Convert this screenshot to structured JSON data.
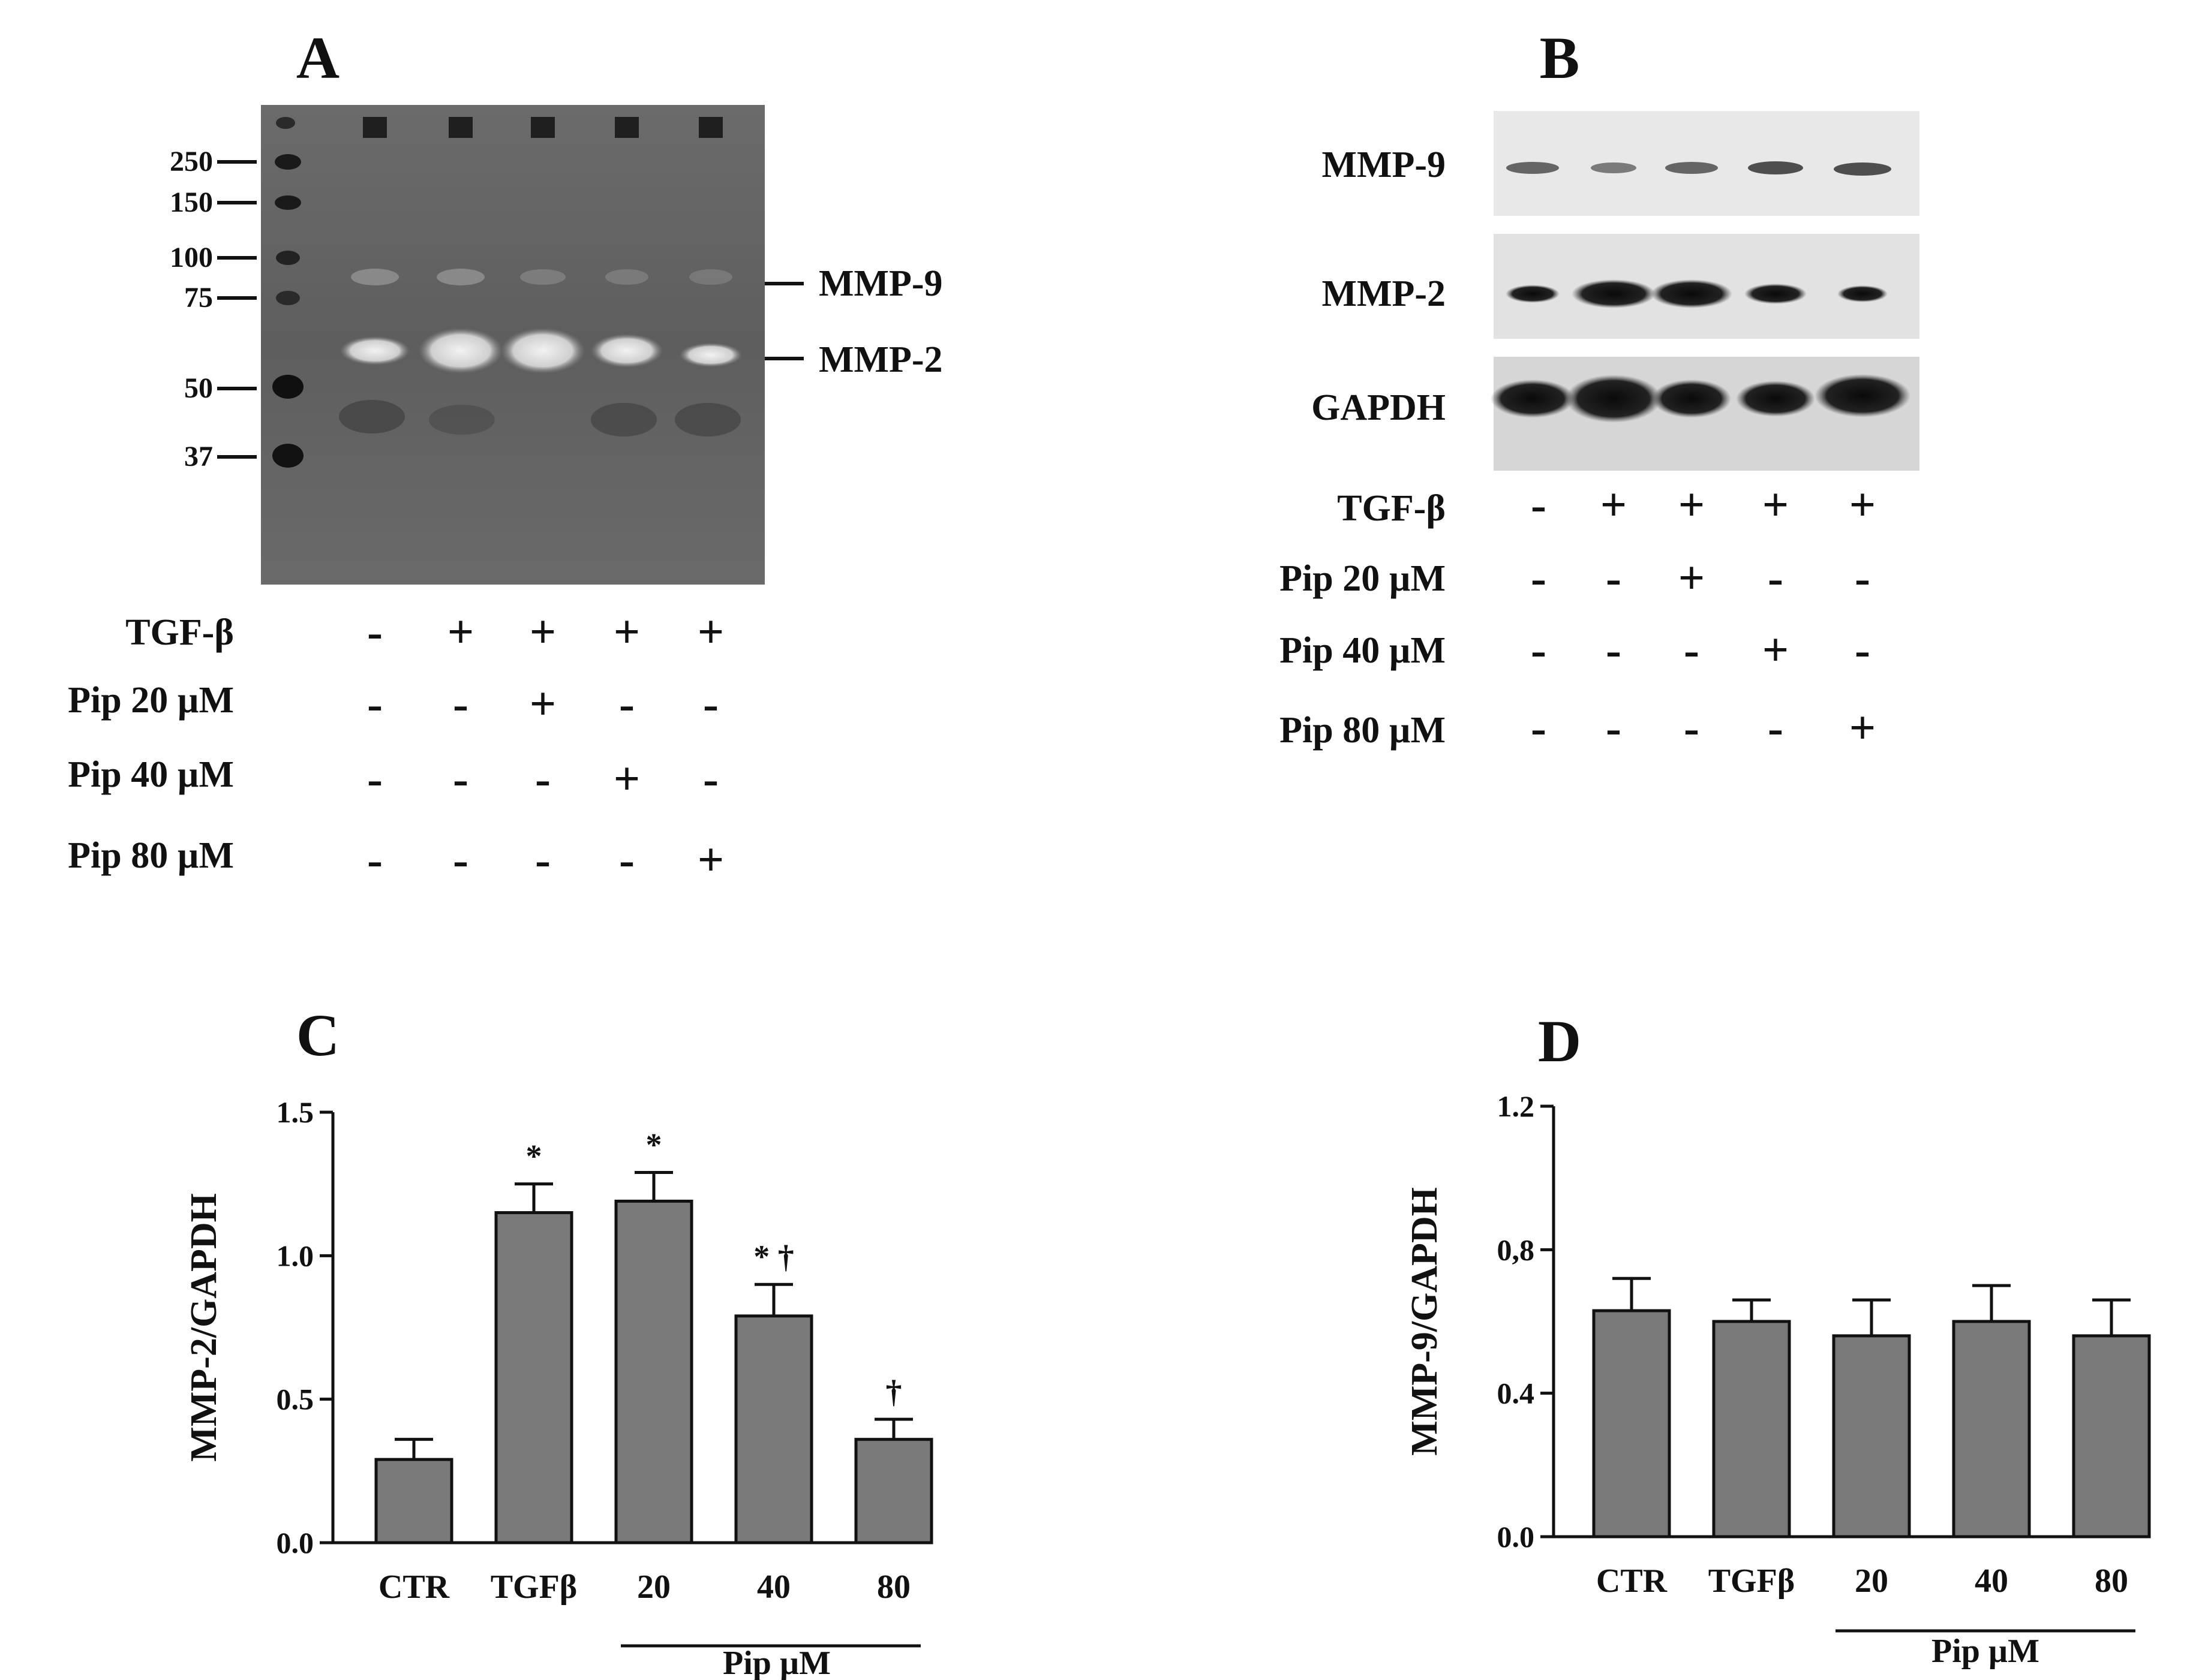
{
  "figure": {
    "panels": {
      "A": {
        "label": "A",
        "markers": [
          "250",
          "150",
          "100",
          "75",
          "50",
          "37"
        ],
        "band_labels": [
          "MMP-9",
          "MMP-2"
        ],
        "conditions": [
          {
            "label": "TGF-β",
            "signs": [
              "-",
              "+",
              "+",
              "+",
              "+"
            ]
          },
          {
            "label": "Pip 20 µM",
            "signs": [
              "-",
              "-",
              "+",
              "-",
              "-"
            ]
          },
          {
            "label": "Pip 40 µM",
            "signs": [
              "-",
              "-",
              "-",
              "+",
              "-"
            ]
          },
          {
            "label": "Pip 80 µM",
            "signs": [
              "-",
              "-",
              "-",
              "-",
              "+"
            ]
          }
        ]
      },
      "B": {
        "label": "B",
        "blots": [
          "MMP-9",
          "MMP-2",
          "GAPDH"
        ],
        "conditions": [
          {
            "label": "TGF-β",
            "signs": [
              "-",
              "+",
              "+",
              "+",
              "+"
            ]
          },
          {
            "label": "Pip 20 µM",
            "signs": [
              "-",
              "-",
              "+",
              "-",
              "-"
            ]
          },
          {
            "label": "Pip 40 µM",
            "signs": [
              "-",
              "-",
              "-",
              "+",
              "-"
            ]
          },
          {
            "label": "Pip 80 µM",
            "signs": [
              "-",
              "-",
              "-",
              "-",
              "+"
            ]
          }
        ]
      },
      "C": {
        "label": "C",
        "group_label": "Pip µM"
      },
      "D": {
        "label": "D",
        "group_label": "Pip µM"
      }
    }
  },
  "chart_data": [
    {
      "type": "bar",
      "panel": "C",
      "categories": [
        "CTR",
        "TGFβ",
        "20",
        "40",
        "80"
      ],
      "values": [
        0.29,
        1.15,
        1.19,
        0.79,
        0.36
      ],
      "errors": [
        0.07,
        0.1,
        0.1,
        0.11,
        0.07
      ],
      "annotations": [
        "",
        "*",
        "*",
        "* †",
        "†"
      ],
      "ylabel": "MMP-2/GAPDH",
      "ylim": [
        0,
        1.5
      ],
      "yticks": [
        0,
        0.5,
        1.0,
        1.5
      ],
      "ytick_labels": [
        "0.0",
        "0.5",
        "1.0",
        "1.5"
      ],
      "bar_color": "#7a7a7a",
      "grid": false
    },
    {
      "type": "bar",
      "panel": "D",
      "categories": [
        "CTR",
        "TGFβ",
        "20",
        "40",
        "80"
      ],
      "values": [
        0.63,
        0.6,
        0.56,
        0.6,
        0.56
      ],
      "errors": [
        0.09,
        0.06,
        0.1,
        0.1,
        0.1
      ],
      "annotations": [
        "",
        "",
        "",
        "",
        ""
      ],
      "ylabel": "MMP-9/GAPDH",
      "ylim": [
        0,
        1.2
      ],
      "yticks": [
        0,
        0.4,
        0.8,
        1.2
      ],
      "ytick_labels": [
        "0.0",
        "0.4",
        "0,8",
        "1.2"
      ],
      "bar_color": "#7a7a7a",
      "grid": false
    }
  ]
}
